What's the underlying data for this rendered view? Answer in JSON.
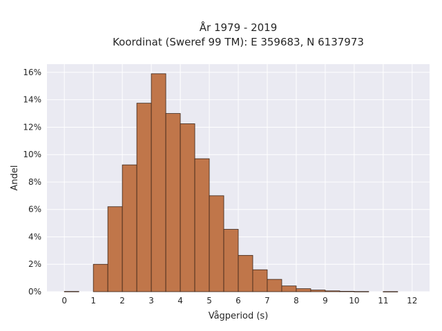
{
  "chart_data": {
    "type": "bar",
    "title_line1": "År 1979 - 2019",
    "title_line2": "Koordinat (Sweref 99 TM): E 359683, N 6137973",
    "xlabel": "Vågperiod (s)",
    "ylabel": "Andel",
    "xlim": [
      -0.6,
      12.6
    ],
    "ylim": [
      0,
      16.6
    ],
    "x_ticks": [
      0,
      1,
      2,
      3,
      4,
      5,
      6,
      7,
      8,
      9,
      10,
      11,
      12
    ],
    "x_tick_labels": [
      "0",
      "1",
      "2",
      "3",
      "4",
      "5",
      "6",
      "7",
      "8",
      "9",
      "10",
      "11",
      "12"
    ],
    "y_ticks": [
      0,
      2,
      4,
      6,
      8,
      10,
      12,
      14,
      16
    ],
    "y_tick_labels": [
      "0%",
      "2%",
      "4%",
      "6%",
      "8%",
      "10%",
      "12%",
      "14%",
      "16%"
    ],
    "bin_width": 0.5,
    "bins": [
      {
        "x_start": 0.0,
        "value": 0.02
      },
      {
        "x_start": 1.0,
        "value": 2.0
      },
      {
        "x_start": 1.5,
        "value": 6.2
      },
      {
        "x_start": 2.0,
        "value": 9.25
      },
      {
        "x_start": 2.5,
        "value": 13.75
      },
      {
        "x_start": 3.0,
        "value": 15.9
      },
      {
        "x_start": 3.5,
        "value": 13.0
      },
      {
        "x_start": 4.0,
        "value": 12.25
      },
      {
        "x_start": 4.5,
        "value": 9.7
      },
      {
        "x_start": 5.0,
        "value": 7.0
      },
      {
        "x_start": 5.5,
        "value": 4.55
      },
      {
        "x_start": 6.0,
        "value": 2.65
      },
      {
        "x_start": 6.5,
        "value": 1.6
      },
      {
        "x_start": 7.0,
        "value": 0.9
      },
      {
        "x_start": 7.5,
        "value": 0.42
      },
      {
        "x_start": 8.0,
        "value": 0.22
      },
      {
        "x_start": 8.5,
        "value": 0.12
      },
      {
        "x_start": 9.0,
        "value": 0.06
      },
      {
        "x_start": 9.5,
        "value": 0.03
      },
      {
        "x_start": 10.0,
        "value": 0.015
      },
      {
        "x_start": 11.0,
        "value": 0.01
      }
    ],
    "grid": true,
    "colors": {
      "bar_fill": "#c0764a",
      "bar_edge": "#3a2418",
      "plot_background": "#eaeaf2",
      "grid": "#ffffff"
    }
  }
}
